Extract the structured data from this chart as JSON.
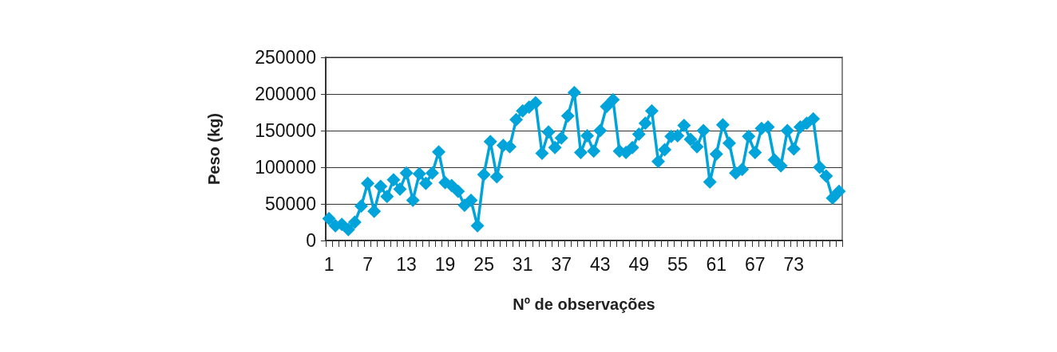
{
  "chart_data": {
    "type": "line",
    "xlabel": "Nº de observações",
    "ylabel": "Peso (kg)",
    "categories": [
      "1",
      null,
      null,
      null,
      null,
      null,
      "7",
      null,
      null,
      null,
      null,
      null,
      "13",
      null,
      null,
      null,
      null,
      null,
      "19",
      null,
      null,
      null,
      null,
      null,
      "25",
      null,
      null,
      null,
      null,
      null,
      "31",
      null,
      null,
      null,
      null,
      null,
      "37",
      null,
      null,
      null,
      null,
      null,
      "43",
      null,
      null,
      null,
      null,
      null,
      "49",
      null,
      null,
      null,
      null,
      null,
      "55",
      null,
      null,
      null,
      null,
      null,
      "61",
      null,
      null,
      null,
      null,
      null,
      "67",
      null,
      null,
      null,
      null,
      null,
      "73",
      null,
      null,
      null,
      null,
      null,
      null,
      null
    ],
    "series": [
      {
        "color": "#00a3da",
        "values": [
          30000,
          20000,
          22000,
          15000,
          25000,
          47000,
          78000,
          40000,
          74000,
          60000,
          83000,
          70000,
          92000,
          55000,
          91000,
          78000,
          92000,
          121000,
          79000,
          75000,
          67000,
          48000,
          55000,
          20000,
          90000,
          135000,
          87000,
          130000,
          128000,
          165000,
          177000,
          182000,
          188000,
          119000,
          148000,
          127000,
          140000,
          170000,
          202000,
          120000,
          143000,
          122000,
          150000,
          183000,
          192000,
          122000,
          120000,
          127000,
          145000,
          160000,
          177000,
          108000,
          124000,
          142000,
          143000,
          157000,
          138000,
          128000,
          150000,
          80000,
          118000,
          158000,
          133000,
          92000,
          97000,
          142000,
          120000,
          153000,
          155000,
          110000,
          102000,
          150000,
          125000,
          155000,
          160000,
          166000,
          100000,
          88000,
          58000,
          67000
        ]
      }
    ],
    "ylim": [
      0,
      250000
    ],
    "yticks": [
      0,
      50000,
      100000,
      150000,
      200000,
      250000
    ],
    "grid": "y",
    "marker": "diamond",
    "line_style": "solid"
  }
}
